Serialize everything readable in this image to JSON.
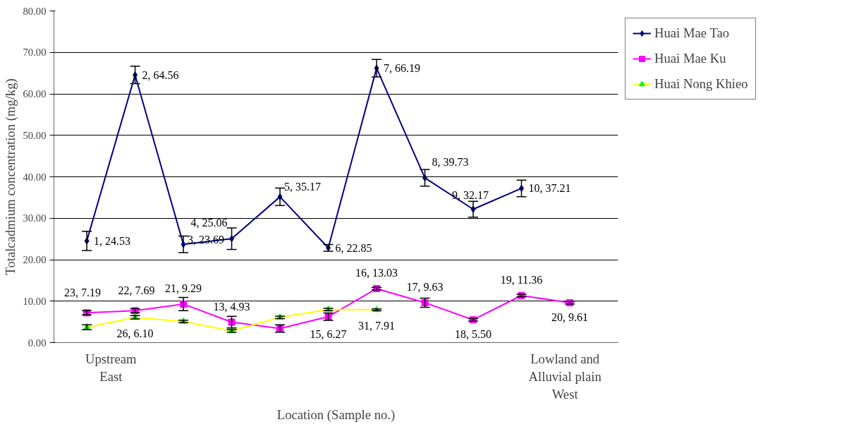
{
  "chart_data": {
    "type": "line",
    "xlabel": "Location (Sample no.)",
    "ylabel": "Totalcadmium concentration (mg/kg)",
    "categories": [
      null,
      null,
      null,
      null,
      null,
      null,
      null,
      null,
      null,
      null,
      null
    ],
    "series": [
      {
        "name": "Huai Mae Tao",
        "color": "#000080",
        "marker": "diamond",
        "values": [
          24.53,
          64.56,
          23.69,
          25.06,
          35.17,
          22.85,
          66.19,
          39.73,
          32.17,
          37.21,
          null
        ],
        "errors": [
          2.3,
          2.1,
          2.0,
          2.6,
          2.1,
          0.8,
          2.1,
          2.0,
          1.9,
          2.0,
          null
        ],
        "value_labels": [
          "1, 24.53",
          "2, 64.56",
          "3, 23.69",
          "4, 25.06",
          "5, 35.17",
          "6, 22.85",
          "7, 66.19",
          "8, 39.73",
          "9, 32.17",
          "10, 37.21",
          null
        ]
      },
      {
        "name": "Huai Mae Ku",
        "color": "#ff00ff",
        "marker": "square",
        "values": [
          7.19,
          7.69,
          9.29,
          4.93,
          3.4,
          6.27,
          13.03,
          9.63,
          5.5,
          11.36,
          9.61
        ],
        "errors": [
          0.5,
          0.5,
          1.6,
          1.4,
          0.9,
          0.9,
          0.3,
          1.1,
          0.3,
          0.3,
          0.3
        ],
        "value_labels": [
          "23, 7.19",
          "22, 7.69",
          "21, 9.29",
          "13, 4.93",
          null,
          "15, 6.27",
          "16, 13.03",
          "17, 9.63",
          "18, 5.50",
          "19, 11.36",
          "20, 9.61"
        ]
      },
      {
        "name": "Huai Nong Khieo",
        "color": "#ffff00",
        "colors": [
          "#00ff00",
          "#00ff00",
          "#00ff00",
          "#00ff00",
          "#00ff00",
          "#00ff00",
          "#00ff00",
          null,
          null,
          null,
          null
        ],
        "marker": "triangle",
        "values": [
          3.7,
          6.1,
          5.1,
          2.8,
          6.1,
          8.0,
          7.91,
          null,
          null,
          null,
          null
        ],
        "errors": [
          0.6,
          0.4,
          0.3,
          0.3,
          0.3,
          0.3,
          0.2,
          null,
          null,
          null,
          null
        ],
        "value_labels": [
          null,
          "26, 6.10",
          null,
          null,
          null,
          null,
          "31, 7.91",
          null,
          null,
          null,
          null
        ]
      }
    ],
    "ylim": [
      0,
      80
    ],
    "yticks": [
      {
        "value": 0,
        "label": "0.00"
      },
      {
        "value": 10,
        "label": "10.00"
      },
      {
        "value": 20,
        "label": "20.00"
      },
      {
        "value": 30,
        "label": "30.00"
      },
      {
        "value": 40,
        "label": "40.00"
      },
      {
        "value": 50,
        "label": "50.00"
      },
      {
        "value": 60,
        "label": "60.00"
      },
      {
        "value": 70,
        "label": "70.00"
      },
      {
        "value": 80,
        "label": "80.00"
      }
    ],
    "grid": "y",
    "legend": "right",
    "tick_labels": "y",
    "line_style": "solid",
    "annotations": [
      "Upstream\nEast",
      "Lowland and\nAlluvial plain\nWest"
    ]
  }
}
